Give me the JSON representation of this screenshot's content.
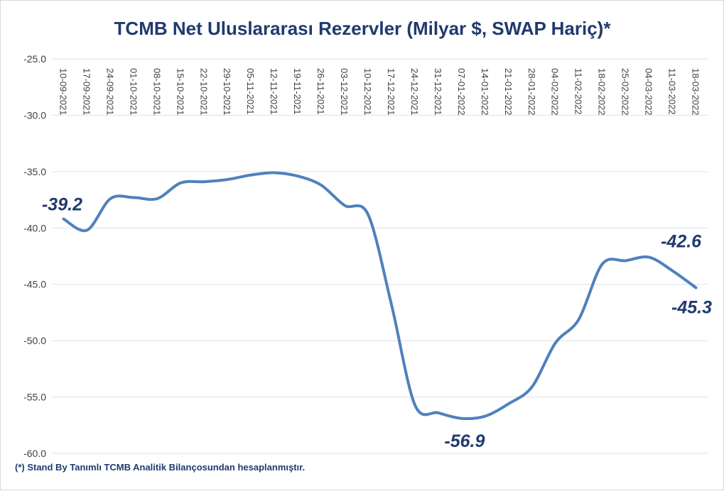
{
  "chart_data": {
    "type": "line",
    "title": "TCMB Net Uluslararası Rezervler  (Milyar $, SWAP Hariç)*",
    "footnote": "(*) Stand By Tanımlı TCMB Analitik Bilançosundan hesaplanmıştır.",
    "x": [
      "10-09-2021",
      "17-09-2021",
      "24-09-2021",
      "01-10-2021",
      "08-10-2021",
      "15-10-2021",
      "22-10-2021",
      "29-10-2021",
      "05-11-2021",
      "12-11-2021",
      "19-11-2021",
      "26-11-2021",
      "03-12-2021",
      "10-12-2021",
      "17-12-2021",
      "24-12-2021",
      "31-12-2021",
      "07-01-2022",
      "14-01-2022",
      "21-01-2022",
      "28-01-2022",
      "04-02-2022",
      "11-02-2022",
      "18-02-2022",
      "25-02-2022",
      "04-03-2022",
      "11-03-2022",
      "18-03-2022"
    ],
    "series": [
      {
        "values": [
          -39.2,
          -40.2,
          -37.4,
          -37.3,
          -37.4,
          -36.0,
          -35.9,
          -35.7,
          -35.3,
          -35.1,
          -35.4,
          -36.2,
          -38.0,
          -38.8,
          -46.8,
          -55.7,
          -56.4,
          -56.9,
          -56.7,
          -55.6,
          -54.1,
          -50.2,
          -48.1,
          -43.2,
          -42.9,
          -42.6,
          -43.8,
          -45.3
        ],
        "color": "#4f81bd"
      }
    ],
    "ylim": [
      -60.0,
      -25.0
    ],
    "yticks": [
      "-25.0",
      "-30.0",
      "-35.0",
      "-40.0",
      "-45.0",
      "-50.0",
      "-55.0",
      "-60.0"
    ],
    "ytick_values": [
      -25,
      -30,
      -35,
      -40,
      -45,
      -50,
      -55,
      -60
    ],
    "x_axis_position": "top",
    "grid": true,
    "data_labels": [
      {
        "index": 0,
        "text": "-39.2"
      },
      {
        "index": 17,
        "text": "-56.9"
      },
      {
        "index": 25,
        "text": "-42.6"
      },
      {
        "index": 27,
        "text": "-45.3"
      }
    ]
  }
}
